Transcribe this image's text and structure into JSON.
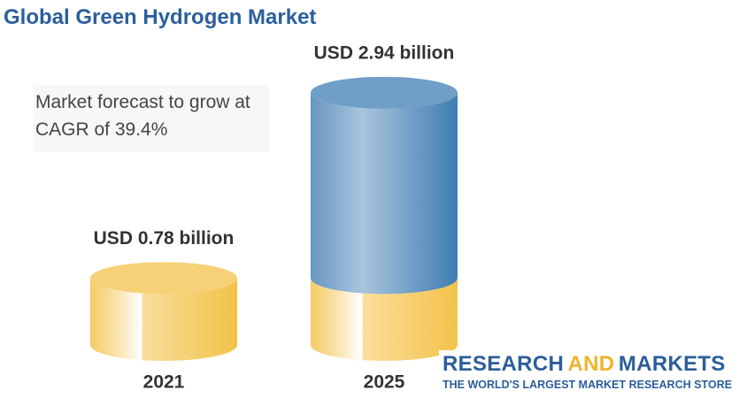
{
  "chart_data": {
    "type": "cylinder",
    "title": "Global Green Hydrogen Market",
    "annotation": "Market forecast to grow at CAGR of 39.4%",
    "categories": [
      "2021",
      "2025"
    ],
    "values": [
      0.78,
      2.94
    ],
    "value_labels": [
      "USD 0.78 billion",
      "USD 2.94 billion"
    ],
    "colors": [
      "#f3c24a",
      "#3f7db3"
    ]
  },
  "logo": {
    "words": [
      "RESEARCH",
      "AND",
      "MARKETS"
    ],
    "tagline": "THE WORLD'S LARGEST MARKET RESEARCH STORE"
  }
}
